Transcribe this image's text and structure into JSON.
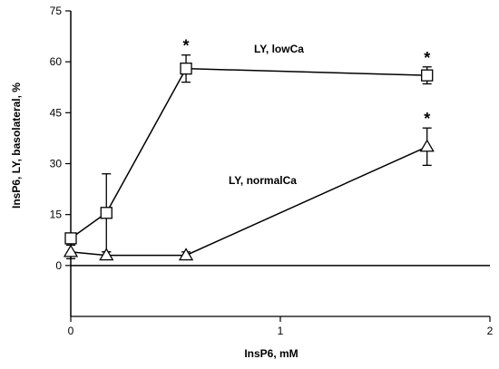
{
  "chart_data": {
    "type": "line",
    "title": "",
    "xlabel": "InsP6, mM",
    "ylabel": "InsP6, LY, basolateral, %",
    "xlim": [
      0,
      2
    ],
    "ylim": [
      -15,
      75
    ],
    "x_ticks": [
      0,
      1,
      2
    ],
    "y_ticks": [
      0,
      15,
      30,
      45,
      60,
      75
    ],
    "grid": false,
    "legend": "none",
    "series": [
      {
        "name": "LY, lowCa",
        "marker": "square",
        "x": [
          0,
          0.17,
          0.55,
          1.7
        ],
        "y": [
          8,
          15.5,
          58,
          56
        ],
        "error": [
          0,
          11.5,
          4,
          2.5
        ],
        "significant": [
          false,
          false,
          true,
          true
        ]
      },
      {
        "name": "LY, normalCa",
        "marker": "triangle",
        "x": [
          0,
          0.17,
          0.55,
          1.7
        ],
        "y": [
          4,
          3,
          3,
          35
        ],
        "error": [
          2,
          1,
          1,
          5.5
        ],
        "significant": [
          false,
          false,
          false,
          true
        ]
      }
    ],
    "annotations": [
      "*",
      "*",
      "*"
    ]
  }
}
